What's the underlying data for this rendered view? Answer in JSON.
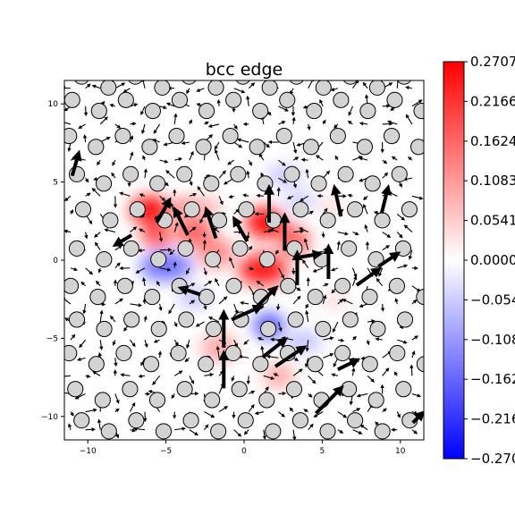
{
  "chart_data": {
    "type": "heatmap",
    "title": "bcc edge",
    "xlim": [
      -11.5,
      11.5
    ],
    "ylim": [
      -11.5,
      11.5
    ],
    "xticks": [
      -10,
      -5,
      0,
      5,
      10
    ],
    "yticks": [
      -10,
      -5,
      0,
      5,
      10
    ],
    "xtick_labels": [
      "−10",
      "−5",
      "0",
      "5",
      "10"
    ],
    "ytick_labels": [
      "−10",
      "−5",
      "0",
      "5",
      "10"
    ],
    "colorbar": {
      "min": -0.2707,
      "max": 0.2707,
      "colormap": "bwr",
      "ticks": [
        0.2707,
        0.2166,
        0.1624,
        0.1083,
        0.0541,
        0.0,
        -0.0541,
        -0.1083,
        -0.1624,
        -0.2166,
        -0.2707
      ],
      "tick_labels": [
        "0.2707",
        "0.2166",
        "0.1624",
        "0.1083",
        "0.0541",
        "0.0000",
        "−0.0541",
        "−0.1083",
        "−0.1624",
        "−0.2166",
        "−0.2707"
      ]
    },
    "field_blobs": [
      {
        "x": -6.0,
        "y": 3.2,
        "sx": 1.3,
        "sy": 0.9,
        "value": 0.27
      },
      {
        "x": -5.6,
        "y": 1.6,
        "sx": 1.0,
        "sy": 0.8,
        "value": 0.2
      },
      {
        "x": -3.2,
        "y": 1.8,
        "sx": 1.2,
        "sy": 0.9,
        "value": 0.18
      },
      {
        "x": -3.8,
        "y": 3.4,
        "sx": 0.9,
        "sy": 0.6,
        "value": 0.14
      },
      {
        "x": -1.8,
        "y": 0.5,
        "sx": 1.2,
        "sy": 1.0,
        "value": 0.13
      },
      {
        "x": 1.4,
        "y": 2.4,
        "sx": 1.3,
        "sy": 1.0,
        "value": 0.27
      },
      {
        "x": 1.2,
        "y": -0.6,
        "sx": 1.6,
        "sy": 1.0,
        "value": 0.26
      },
      {
        "x": 3.2,
        "y": 1.2,
        "sx": 1.0,
        "sy": 1.0,
        "value": 0.18
      },
      {
        "x": -5.0,
        "y": -0.4,
        "sx": 1.7,
        "sy": 0.9,
        "value": -0.16
      },
      {
        "x": -3.2,
        "y": -2.4,
        "sx": 1.0,
        "sy": 0.6,
        "value": -0.08
      },
      {
        "x": 1.6,
        "y": -4.2,
        "sx": 1.0,
        "sy": 0.8,
        "value": -0.2
      },
      {
        "x": 3.8,
        "y": -5.2,
        "sx": 1.2,
        "sy": 0.6,
        "value": -0.08
      },
      {
        "x": 2.6,
        "y": 5.4,
        "sx": 1.2,
        "sy": 0.6,
        "value": -0.07
      },
      {
        "x": 3.6,
        "y": 3.8,
        "sx": 1.0,
        "sy": 0.6,
        "value": -0.06
      },
      {
        "x": -1.6,
        "y": -5.6,
        "sx": 1.2,
        "sy": 0.9,
        "value": 0.1
      },
      {
        "x": 2.2,
        "y": -7.4,
        "sx": 1.0,
        "sy": 0.8,
        "value": 0.1
      },
      {
        "x": -2.4,
        "y": 3.4,
        "sx": 0.9,
        "sy": 0.6,
        "value": 0.1
      },
      {
        "x": 5.6,
        "y": 3.4,
        "sx": 0.8,
        "sy": 0.5,
        "value": 0.05
      },
      {
        "x": 5.8,
        "y": -2.6,
        "sx": 0.8,
        "sy": 0.5,
        "value": 0.05
      }
    ],
    "atom_rows": [
      {
        "y": 11.4,
        "x_start": -10.4,
        "spacing": 1.72,
        "count": 13,
        "dy": 0.35
      },
      {
        "y": 9.9,
        "x_start": -11.0,
        "spacing": 1.72,
        "count": 14,
        "dy": 0.35
      },
      {
        "y": 7.6,
        "x_start": -11.2,
        "spacing": 1.72,
        "count": 14,
        "dy": 0.35
      },
      {
        "y": 5.2,
        "x_start": -10.7,
        "spacing": 1.72,
        "count": 13,
        "dy": 0.3
      },
      {
        "y": 2.9,
        "x_start": -10.3,
        "spacing": 1.74,
        "count": 13,
        "dy": 0.35
      },
      {
        "y": 0.4,
        "x_start": -10.7,
        "spacing": 1.74,
        "count": 13,
        "dy": 0.35
      },
      {
        "y": -2.0,
        "x_start": -11.1,
        "spacing": 1.74,
        "count": 14,
        "dy": 0.35
      },
      {
        "y": -4.1,
        "x_start": -10.7,
        "spacing": 1.75,
        "count": 13,
        "dy": 0.3
      },
      {
        "y": -6.3,
        "x_start": -11.2,
        "spacing": 1.75,
        "count": 14,
        "dy": 0.35
      },
      {
        "y": -8.6,
        "x_start": -10.8,
        "spacing": 1.75,
        "count": 13,
        "dy": 0.35
      },
      {
        "y": -10.6,
        "x_start": -10.4,
        "spacing": 1.75,
        "count": 13,
        "dy": 0.35
      }
    ],
    "large_arrows": [
      {
        "x": 1.6,
        "y": 2.4,
        "dx": 0.0,
        "dy": 2.2
      },
      {
        "x": 2.6,
        "y": 0.6,
        "dx": 0.0,
        "dy": 2.2
      },
      {
        "x": 3.4,
        "y": -1.6,
        "dx": 0.0,
        "dy": 2.0
      },
      {
        "x": 0.6,
        "y": -3.2,
        "dx": 1.4,
        "dy": 1.4
      },
      {
        "x": -0.8,
        "y": -3.8,
        "dx": 1.8,
        "dy": 0.8
      },
      {
        "x": -1.3,
        "y": -5.6,
        "dx": 0.0,
        "dy": 2.2
      },
      {
        "x": -1.3,
        "y": -8.2,
        "dx": 0.0,
        "dy": 2.2
      },
      {
        "x": 1.2,
        "y": -6.2,
        "dx": 1.4,
        "dy": 1.1
      },
      {
        "x": 2.0,
        "y": -6.8,
        "dx": 1.8,
        "dy": 1.2
      },
      {
        "x": 4.6,
        "y": -9.8,
        "dx": 1.6,
        "dy": 1.6
      },
      {
        "x": 6.0,
        "y": -7.0,
        "dx": 1.2,
        "dy": 0.6
      },
      {
        "x": 5.4,
        "y": -1.2,
        "dx": 0.0,
        "dy": 2.0
      },
      {
        "x": 7.2,
        "y": -1.6,
        "dx": 1.4,
        "dy": 1.0
      },
      {
        "x": 8.6,
        "y": -0.4,
        "dx": 1.2,
        "dy": 0.8
      },
      {
        "x": -1.8,
        "y": 1.4,
        "dx": -0.6,
        "dy": 1.8
      },
      {
        "x": -3.6,
        "y": 1.6,
        "dx": -0.8,
        "dy": 1.6
      },
      {
        "x": 0.2,
        "y": 1.2,
        "dx": -0.8,
        "dy": 1.4
      },
      {
        "x": -5.6,
        "y": 2.4,
        "dx": 0.8,
        "dy": 1.4
      },
      {
        "x": 6.2,
        "y": 2.8,
        "dx": -0.4,
        "dy": 1.8
      },
      {
        "x": 8.8,
        "y": 3.0,
        "dx": 0.4,
        "dy": 1.6
      },
      {
        "x": -2.8,
        "y": -2.2,
        "dx": -1.2,
        "dy": 0.4
      },
      {
        "x": 3.6,
        "y": 0.2,
        "dx": 1.2,
        "dy": 0.2
      },
      {
        "x": -7.2,
        "y": 1.6,
        "dx": -1.0,
        "dy": -0.6
      },
      {
        "x": -11.0,
        "y": 5.4,
        "dx": 0.4,
        "dy": 1.4
      },
      {
        "x": 10.8,
        "y": -10.4,
        "dx": 0.6,
        "dy": 0.6
      }
    ]
  }
}
